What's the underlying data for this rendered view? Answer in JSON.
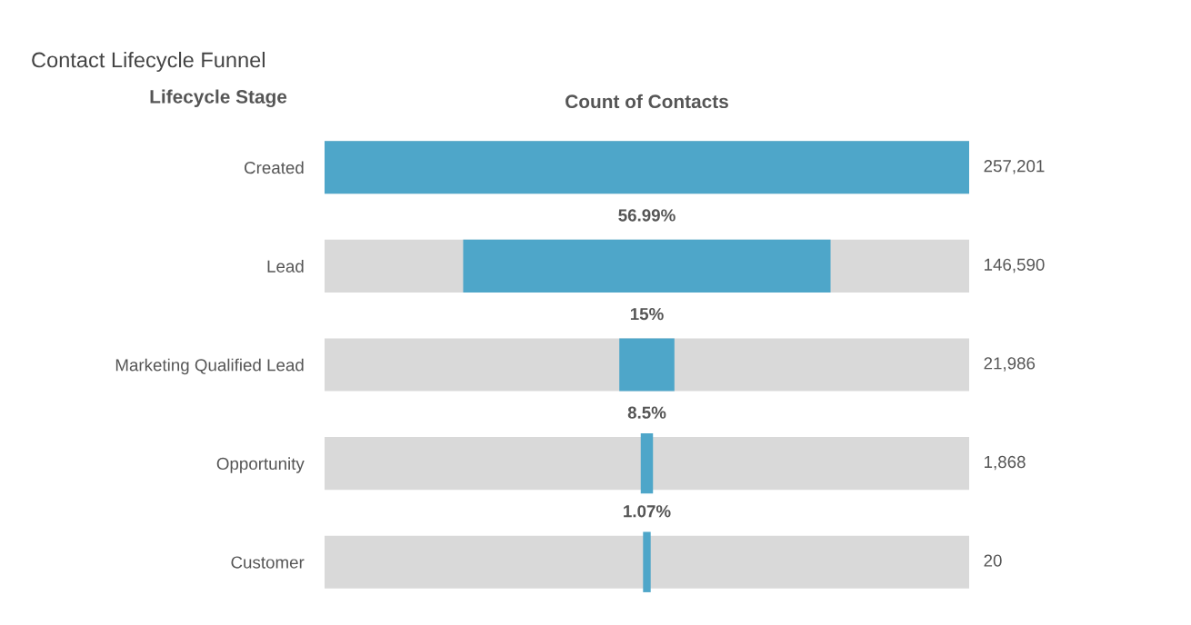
{
  "chart_data": {
    "type": "other",
    "title": "Contact Lifecycle Funnel",
    "xlabel": "Count of Contacts",
    "ylabel": "Lifecycle Stage",
    "categories": [
      "Created",
      "Lead",
      "Marketing Qualified Lead",
      "Opportunity",
      "Customer"
    ],
    "values": [
      257201,
      146590,
      21986,
      1868,
      20
    ],
    "color": "#4ea6c9",
    "value_labels": [
      "257,201",
      "146,590",
      "21,986",
      "1,868",
      "20"
    ],
    "annotations": [
      "56.99%",
      "15%",
      "8.5%",
      "1.07%"
    ]
  }
}
